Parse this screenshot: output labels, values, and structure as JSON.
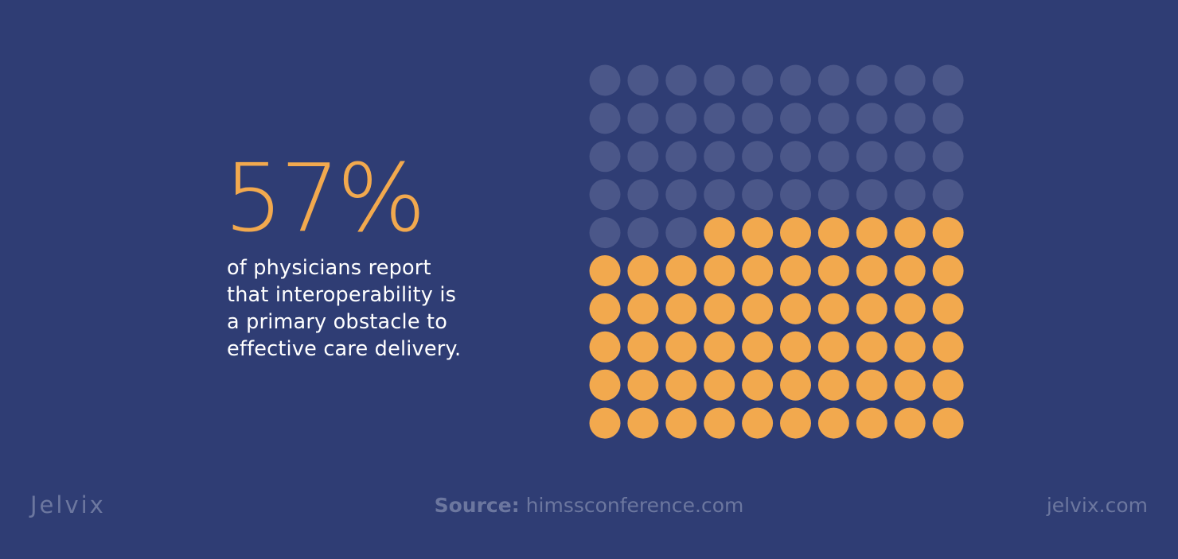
{
  "stat": {
    "percent_label": "57%",
    "description": "of physicians report\nthat interoperability is\na primary obstacle to\neffective care delivery."
  },
  "chart_data": {
    "type": "waffle",
    "total": 100,
    "highlighted": 57,
    "rows": 10,
    "columns": 10,
    "highlight_color": "#f2a94e",
    "base_color": "#4b5789"
  },
  "footer": {
    "logo": "Jelvix",
    "source_label": "Source:",
    "source_value": "himssconference.com",
    "site": "jelvix.com"
  },
  "colors": {
    "background": "#2f3d74",
    "accent": "#f2a94e",
    "muted_text": "#6c779f"
  }
}
